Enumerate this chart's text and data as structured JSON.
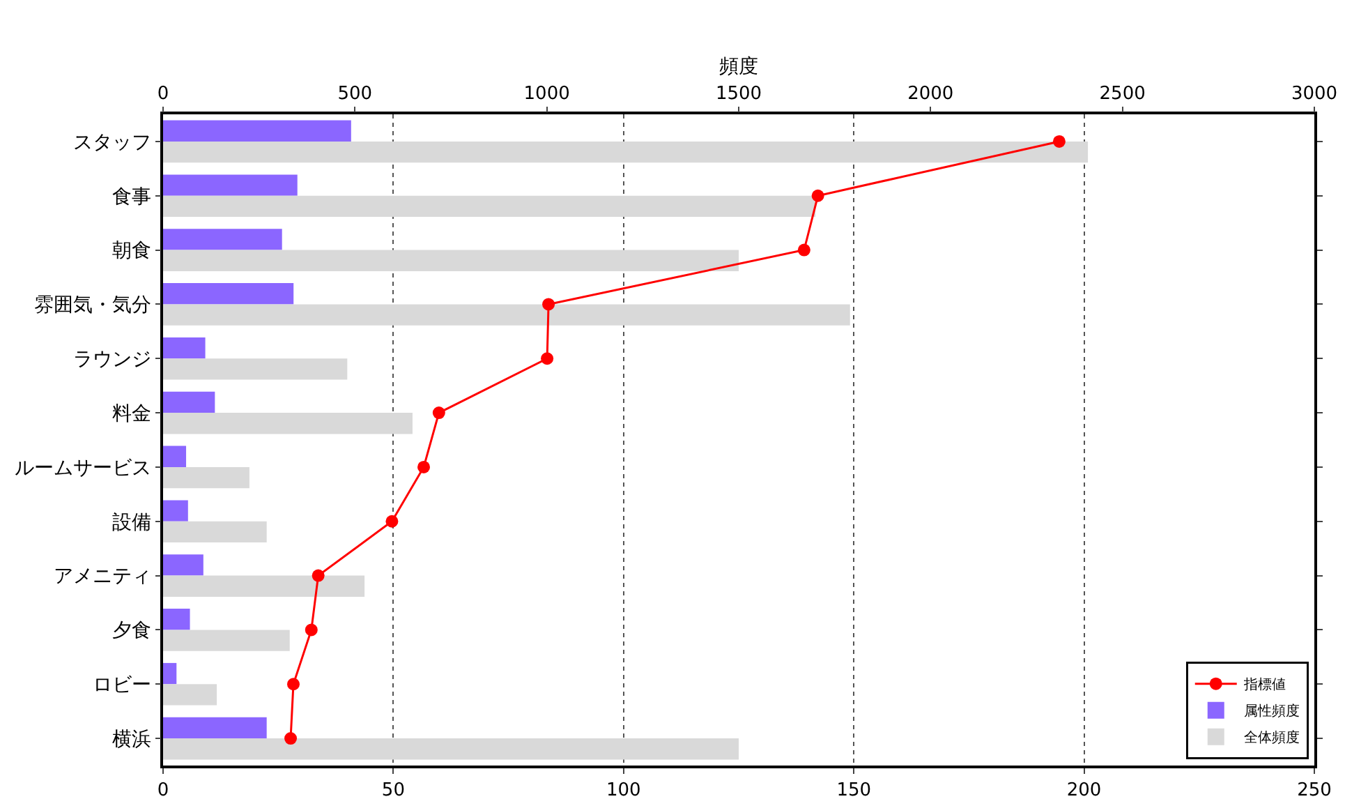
{
  "chart_data": {
    "type": "bar",
    "orientation": "horizontal",
    "x2label": "頻度",
    "categories": [
      "スタッフ",
      "食事",
      "朝食",
      "雰囲気・気分",
      "ラウンジ",
      "料金",
      "ルームサービス",
      "設備",
      "アメニティ",
      "夕食",
      "ロビー",
      "横浜"
    ],
    "series": [
      {
        "name": "指標値",
        "type": "line",
        "color": "#ff0000",
        "marker": "circle",
        "values": [
          194.6,
          142.2,
          139.2,
          83.7,
          83.4,
          59.9,
          56.6,
          49.7,
          33.7,
          32.2,
          28.3,
          27.7
        ]
      },
      {
        "name": "属性頻度",
        "axis": "x2",
        "color": "#8b66ff",
        "values": [
          490,
          350,
          310,
          340,
          110,
          135,
          60,
          65,
          105,
          70,
          35,
          270
        ]
      },
      {
        "name": "全体頻度",
        "axis": "x2",
        "color": "#d9d9d9",
        "values": [
          2410,
          1700,
          1500,
          1790,
          480,
          650,
          225,
          270,
          525,
          330,
          140,
          1500
        ]
      }
    ],
    "xlim": [
      0,
      250
    ],
    "xticks": [
      0,
      50,
      100,
      150,
      200,
      250
    ],
    "x2lim": [
      0,
      3000
    ],
    "x2ticks": [
      0,
      500,
      1000,
      1500,
      2000,
      2500,
      3000
    ],
    "grid": "x",
    "legend": "bottom right"
  }
}
